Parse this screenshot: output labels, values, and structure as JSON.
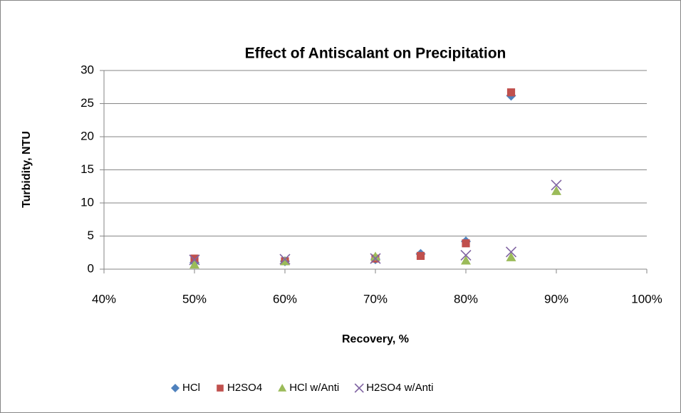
{
  "chart_data": {
    "type": "scatter",
    "title": "Effect of Antiscalant on Precipitation",
    "x_label": "Recovery, %",
    "y_label": "Turbidity, NTU",
    "xlim": [
      40,
      100
    ],
    "xticks": [
      {
        "value": 40,
        "label": "40%"
      },
      {
        "value": 50,
        "label": "50%"
      },
      {
        "value": 60,
        "label": "60%"
      },
      {
        "value": 70,
        "label": "70%"
      },
      {
        "value": 80,
        "label": "80%"
      },
      {
        "value": 90,
        "label": "90%"
      },
      {
        "value": 100,
        "label": "100%"
      }
    ],
    "ylim": [
      0,
      30
    ],
    "yticks": [
      0,
      5,
      10,
      15,
      20,
      25,
      30
    ],
    "grid": true,
    "legend": "bottom",
    "series": [
      {
        "name": "HCl",
        "color": "#4f81bd",
        "marker": "diamond",
        "x": [
          50,
          60,
          70,
          75,
          80,
          85
        ],
        "values": [
          1.0,
          1.2,
          1.5,
          2.3,
          4.2,
          26.2
        ]
      },
      {
        "name": "H2SO4",
        "color": "#c0504d",
        "marker": "square",
        "x": [
          50,
          60,
          70,
          75,
          80,
          85
        ],
        "values": [
          1.6,
          1.2,
          1.6,
          2.0,
          3.9,
          26.7
        ]
      },
      {
        "name": "HCl w/Anti",
        "color": "#9bbb59",
        "marker": "triangle",
        "x": [
          50,
          60,
          70,
          80,
          85,
          90
        ],
        "values": [
          0.7,
          1.2,
          1.9,
          1.3,
          1.8,
          11.8
        ]
      },
      {
        "name": "H2SO4 w/Anti",
        "color": "#8064a2",
        "marker": "x",
        "x": [
          50,
          60,
          70,
          80,
          85,
          90
        ],
        "values": [
          1.4,
          1.5,
          1.6,
          2.1,
          2.6,
          12.7
        ]
      }
    ]
  }
}
